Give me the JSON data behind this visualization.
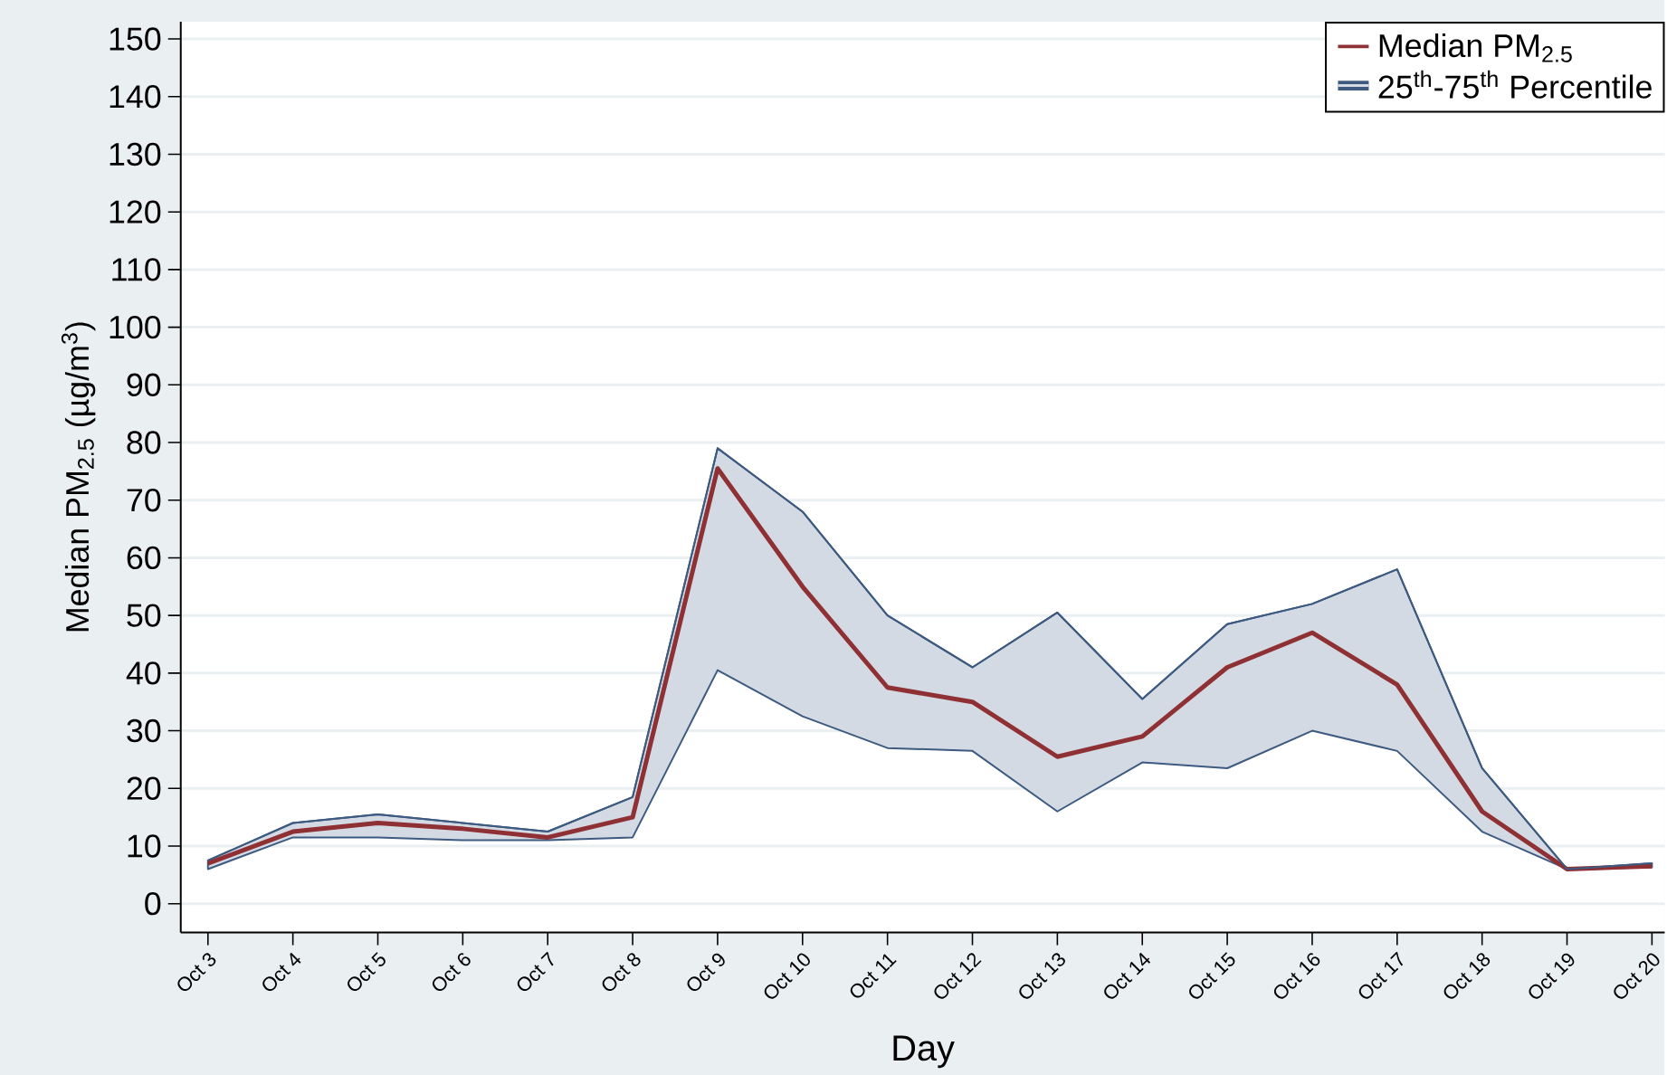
{
  "chart_data": {
    "type": "line",
    "xlabel": "Day",
    "ylabel": "Median PM$_{2.5}$ (µg/m$^{3}$)",
    "categories": [
      "Oct 3",
      "Oct 4",
      "Oct 5",
      "Oct 6",
      "Oct 7",
      "Oct 8",
      "Oct 9",
      "Oct 10",
      "Oct 11",
      "Oct 12",
      "Oct 13",
      "Oct 14",
      "Oct 15",
      "Oct 16",
      "Oct 17",
      "Oct 18",
      "Oct 19",
      "Oct 20"
    ],
    "series": [
      {
        "name": "Median PM$_{2.5}$",
        "color": "#8e3034",
        "values": [
          7,
          12.5,
          14,
          13,
          11.5,
          15,
          75.5,
          55,
          37.5,
          35,
          25.5,
          29,
          41,
          47,
          38,
          16,
          6,
          6.5
        ]
      },
      {
        "name": "25$^{th}$-75$^{th}$ Percentile",
        "color": "#3d5a80",
        "lower": [
          6,
          11.5,
          11.5,
          11,
          11,
          11.5,
          40.5,
          32.5,
          27,
          26.5,
          16,
          24.5,
          23.5,
          30,
          26.5,
          12.5,
          6,
          6.3
        ],
        "upper": [
          7.5,
          14,
          15.5,
          14,
          12.5,
          18.5,
          79,
          68,
          50,
          41,
          50.5,
          35.5,
          48.5,
          52,
          58,
          23.5,
          6,
          7
        ],
        "values": [
          7.5,
          14,
          15.5,
          14,
          12.5,
          18.5,
          79,
          68,
          50,
          41,
          50.5,
          35.5,
          48.5,
          52,
          58,
          23.5,
          6,
          7
        ]
      }
    ],
    "ylim": [
      -5,
      153
    ],
    "yticks": [
      0,
      10,
      20,
      30,
      40,
      50,
      60,
      70,
      80,
      90,
      100,
      110,
      120,
      130,
      140,
      150
    ],
    "grid": "y",
    "legend": "top right",
    "marker": "none",
    "line_style": "solid"
  }
}
